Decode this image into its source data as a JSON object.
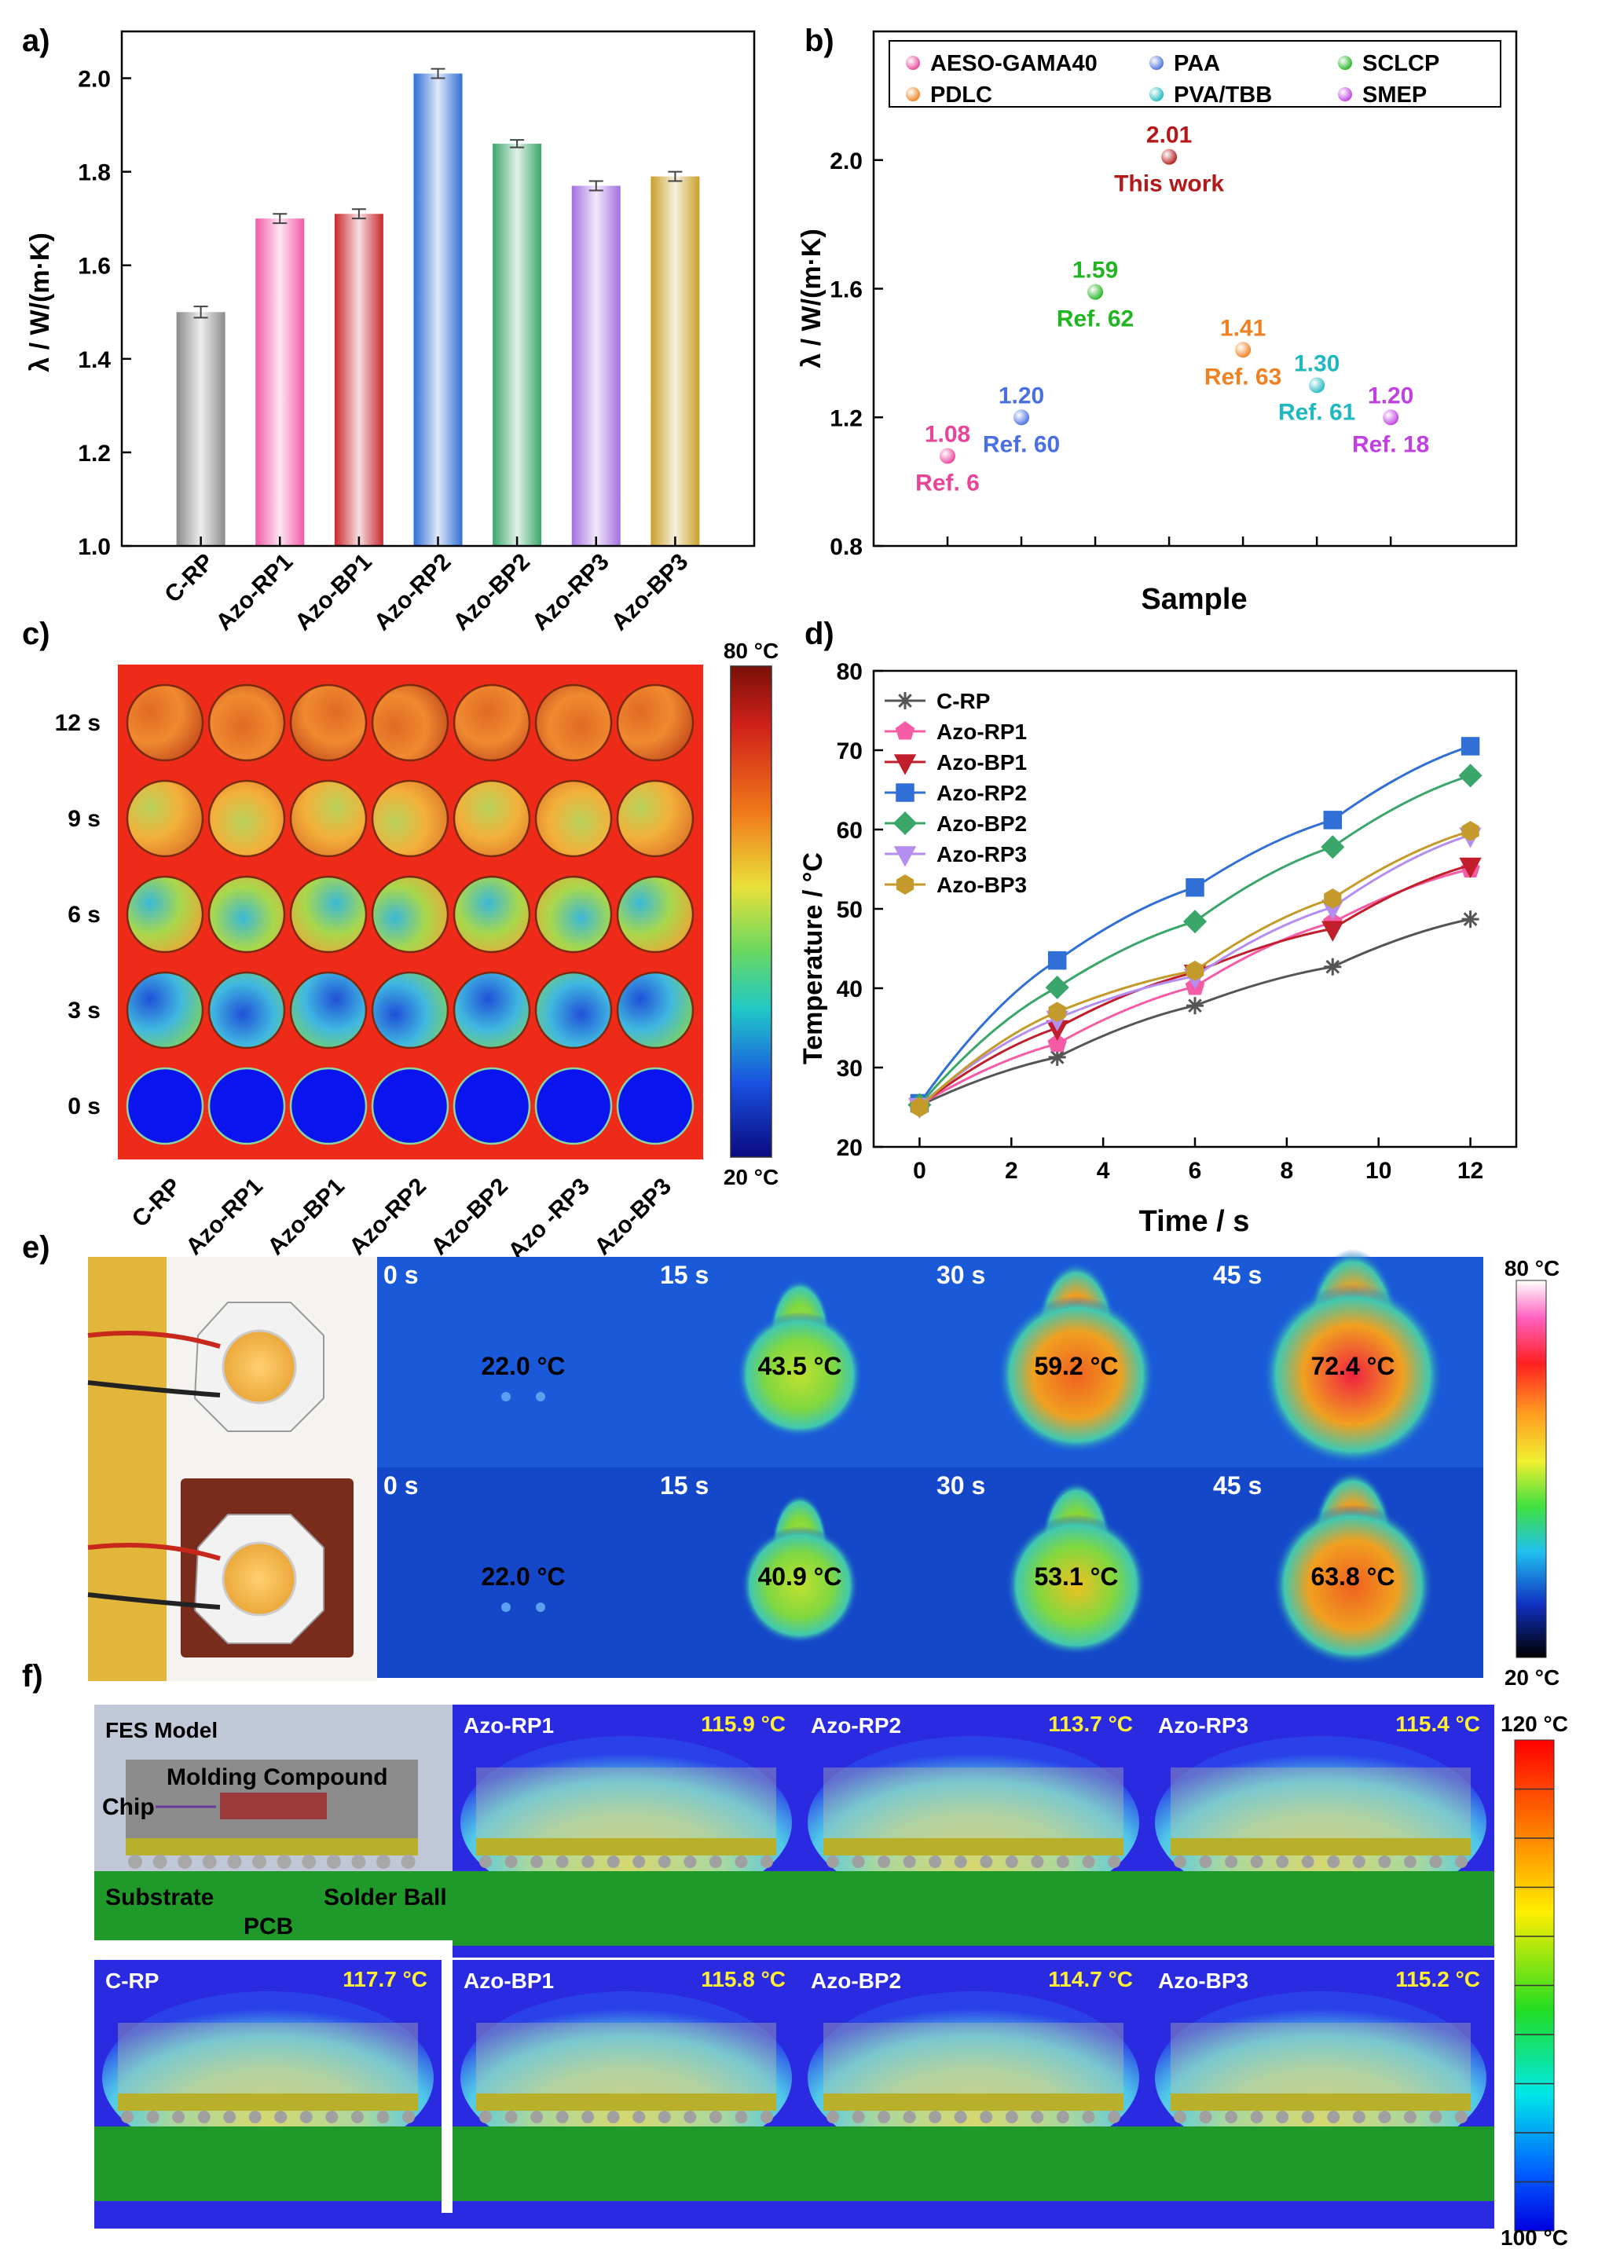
{
  "panels": {
    "a": {
      "letter": "a)",
      "chart_data": {
        "type": "bar",
        "ylabel": "λ / W/(m·K)",
        "ylim": [
          1.0,
          2.1
        ],
        "yticks": [
          "1.0",
          "1.2",
          "1.4",
          "1.6",
          "1.8",
          "2.0"
        ],
        "categories": [
          "C-RP",
          "Azo-RP1",
          "Azo-BP1",
          "Azo-RP2",
          "Azo-BP2",
          "Azo-RP3",
          "Azo-BP3"
        ],
        "values": [
          1.5,
          1.7,
          1.71,
          2.01,
          1.86,
          1.77,
          1.79
        ],
        "errors": [
          0.012,
          0.01,
          0.01,
          0.01,
          0.008,
          0.01,
          0.01
        ],
        "colors": [
          "#8c8c8c",
          "#f25aa8",
          "#c8282d",
          "#2f6fd6",
          "#3aa66a",
          "#a36fe0",
          "#c9a029"
        ]
      }
    },
    "b": {
      "letter": "b)",
      "chart_data": {
        "type": "scatter",
        "xlabel": "Sample",
        "ylabel": "λ / W/(m·K)",
        "ylim": [
          0.8,
          2.4
        ],
        "yticks": [
          "0.8",
          "1.2",
          "1.6",
          "2.0"
        ],
        "legend": [
          {
            "name": "AESO-GAMA40",
            "color": "#e8449a"
          },
          {
            "name": "PAA",
            "color": "#4a6fe0"
          },
          {
            "name": "SCLCP",
            "color": "#22b522"
          },
          {
            "name": "PDLC",
            "color": "#f08020"
          },
          {
            "name": "PVA/TBB",
            "color": "#20b8c0"
          },
          {
            "name": "SMEP",
            "color": "#c040e0"
          }
        ],
        "points": [
          {
            "x": 1,
            "y": 1.08,
            "value": "1.08",
            "label": "Ref. 6",
            "color": "#e8449a"
          },
          {
            "x": 2,
            "y": 1.2,
            "value": "1.20",
            "label": "Ref. 60",
            "color": "#4a6fe0"
          },
          {
            "x": 3,
            "y": 1.59,
            "value": "1.59",
            "label": "Ref. 62",
            "color": "#22b522"
          },
          {
            "x": 4,
            "y": 2.01,
            "value": "2.01",
            "label": "This work",
            "color": "#b41818"
          },
          {
            "x": 5,
            "y": 1.41,
            "value": "1.41",
            "label": "Ref. 63",
            "color": "#f08020"
          },
          {
            "x": 6,
            "y": 1.3,
            "value": "1.30",
            "label": "Ref. 61",
            "color": "#20b8c0"
          },
          {
            "x": 7,
            "y": 1.2,
            "value": "1.20",
            "label": "Ref. 18",
            "color": "#c040e0"
          }
        ]
      }
    },
    "c": {
      "letter": "c)",
      "rows": [
        "12 s",
        "9 s",
        "6 s",
        "3 s",
        "0 s"
      ],
      "columns": [
        "C-RP",
        "Azo-RP1",
        "Azo-BP1",
        "Azo-RP2",
        "Azo-BP2",
        "Azo -RP3",
        "Azo-BP3"
      ],
      "scale_max": "80 °C",
      "scale_min": "20 °C"
    },
    "d": {
      "letter": "d)",
      "chart_data": {
        "type": "line",
        "xlabel": "Time / s",
        "ylabel": "Temperature / °C",
        "xlim": [
          -1,
          13
        ],
        "ylim": [
          20,
          80
        ],
        "xticks": [
          "0",
          "2",
          "4",
          "6",
          "8",
          "10",
          "12"
        ],
        "yticks": [
          "20",
          "30",
          "40",
          "50",
          "60",
          "70",
          "80"
        ],
        "x": [
          0,
          3,
          6,
          9,
          12
        ],
        "series": [
          {
            "name": "C-RP",
            "color": "#555555",
            "marker": "star",
            "values": [
              25.2,
              31.3,
              37.8,
              42.7,
              48.7
            ]
          },
          {
            "name": "Azo-RP1",
            "color": "#f55ca6",
            "marker": "pentagon",
            "values": [
              25.3,
              33.0,
              40.2,
              48.3,
              55.0
            ]
          },
          {
            "name": "Azo-BP1",
            "color": "#c01e2a",
            "marker": "tri-down",
            "values": [
              25.2,
              35.0,
              42.0,
              47.5,
              55.5
            ]
          },
          {
            "name": "Azo-RP2",
            "color": "#2f6fd6",
            "marker": "square",
            "values": [
              25.5,
              43.5,
              52.7,
              61.2,
              70.5
            ]
          },
          {
            "name": "Azo-BP2",
            "color": "#3aa66a",
            "marker": "diamond",
            "values": [
              25.3,
              40.1,
              48.4,
              57.8,
              66.8
            ]
          },
          {
            "name": "Azo-RP3",
            "color": "#b38ef0",
            "marker": "tri-down",
            "values": [
              25.2,
              36.2,
              41.5,
              50.2,
              59.3
            ]
          },
          {
            "name": "Azo-BP3",
            "color": "#c49a2a",
            "marker": "hexagon",
            "values": [
              25.0,
              37.0,
              42.2,
              51.3,
              59.8
            ]
          }
        ]
      }
    },
    "e": {
      "letter": "e)",
      "top": {
        "times": [
          "0 s",
          "15 s",
          "30 s",
          "45 s"
        ],
        "temps": [
          "22.0 °C",
          "43.5 °C",
          "59.2 °C",
          "72.4 °C"
        ]
      },
      "bottom": {
        "times": [
          "0 s",
          "15 s",
          "30 s",
          "45 s"
        ],
        "temps": [
          "22.0 °C",
          "40.9 °C",
          "53.1 °C",
          "63.8 °C"
        ]
      },
      "scale_max": "80 °C",
      "scale_min": "20 °C"
    },
    "f": {
      "letter": "f)",
      "model": {
        "title": "FES Model",
        "molding": "Molding Compound",
        "chip": "Chip",
        "substrate": "Substrate",
        "solder": "Solder Ball",
        "pcb": "PCB"
      },
      "top_row": [
        {
          "name": "Azo-RP1",
          "temp": "115.9 °C"
        },
        {
          "name": "Azo-RP2",
          "temp": "113.7 °C"
        },
        {
          "name": "Azo-RP3",
          "temp": "115.4 °C"
        }
      ],
      "bottom_row": [
        {
          "name": "C-RP",
          "temp": "117.7 °C"
        },
        {
          "name": "Azo-BP1",
          "temp": "115.8 °C"
        },
        {
          "name": "Azo-BP2",
          "temp": "114.7 °C"
        },
        {
          "name": "Azo-BP3",
          "temp": "115.2 °C"
        }
      ],
      "scale_max": "120 °C",
      "scale_min": "100 °C"
    }
  }
}
